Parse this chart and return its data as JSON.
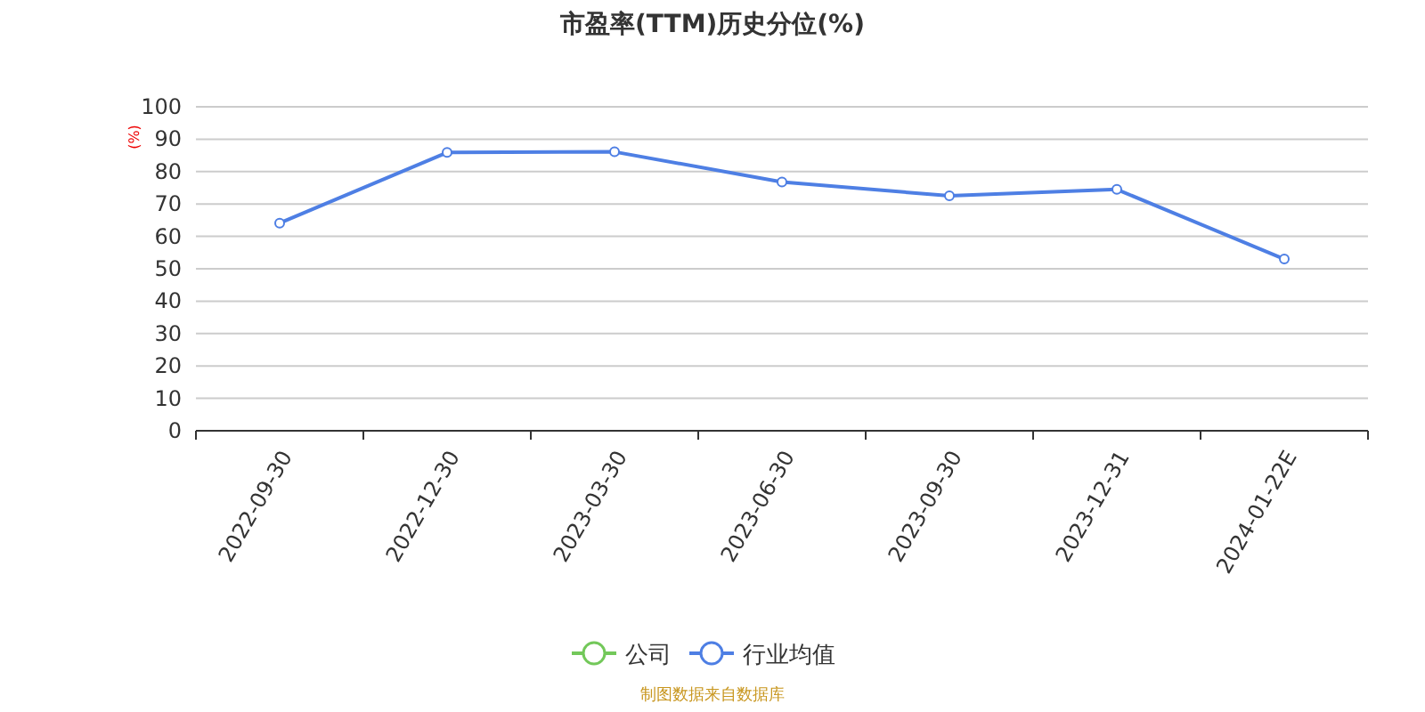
{
  "chart_data": {
    "type": "line",
    "title": "市盈率(TTM)历史分位(%)",
    "ylabel": "(%)",
    "categories": [
      "2022-09-30",
      "2022-12-30",
      "2023-03-30",
      "2023-06-30",
      "2023-09-30",
      "2023-12-31",
      "2024-01-22E"
    ],
    "series": [
      {
        "name": "公司",
        "color": "#73c85a",
        "values": [
          null,
          null,
          null,
          null,
          null,
          null,
          null
        ]
      },
      {
        "name": "行业均值",
        "color": "#4e7fe4",
        "values": [
          64.1,
          85.9,
          86.1,
          76.8,
          72.5,
          74.5,
          53.0
        ]
      }
    ],
    "ylim": [
      0,
      100
    ],
    "yticks": [
      0,
      10,
      20,
      30,
      40,
      50,
      60,
      70,
      80,
      90,
      100
    ],
    "grid": "y",
    "legend": "bottom",
    "marker": "circle",
    "annotations": [
      "制图数据来自数据库"
    ]
  }
}
